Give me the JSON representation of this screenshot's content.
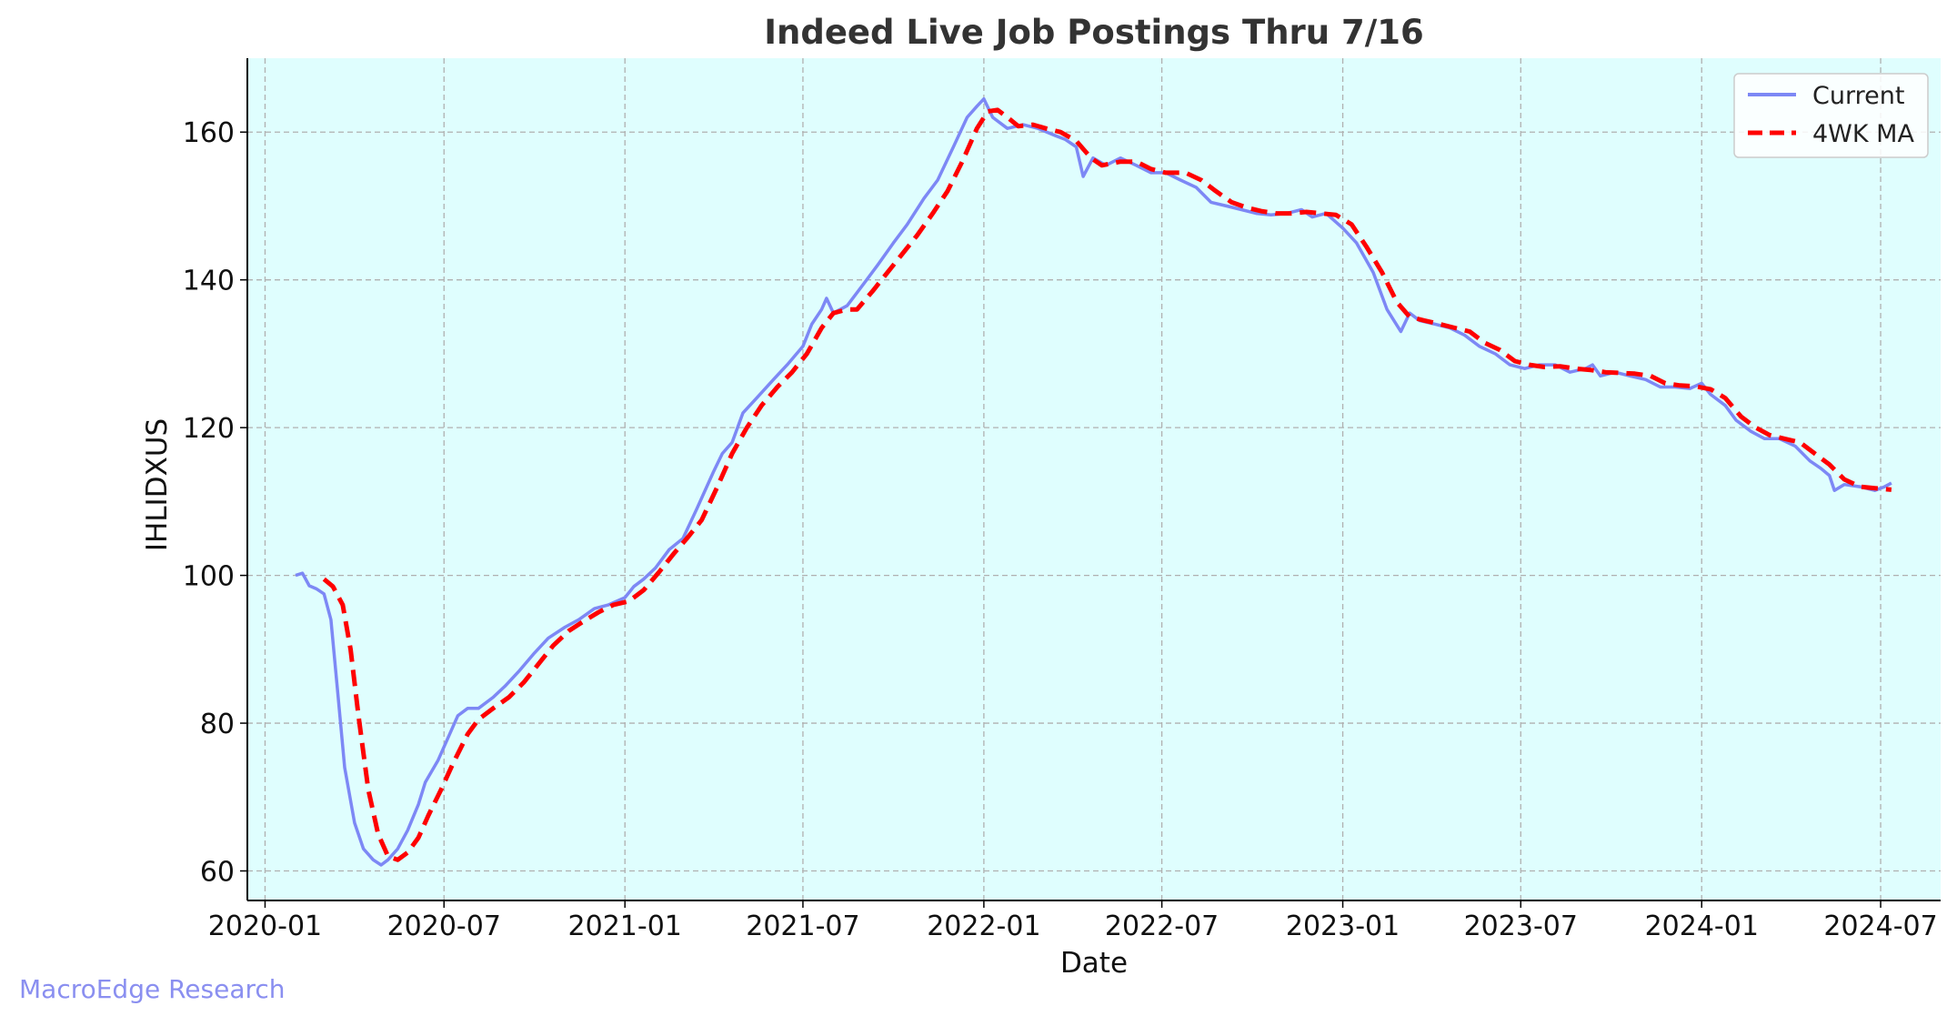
{
  "watermark": "MacroEdge Research",
  "colors": {
    "plot_background": "#dffefe",
    "current_line": "#7d88f5",
    "ma_line": "#ff0000",
    "grid": "#b0b0b0",
    "watermark": "#8a8ff0"
  },
  "chart_data": {
    "type": "line",
    "title": "Indeed Live Job Postings Thru 7/16",
    "xlabel": "Date",
    "ylabel": "IHLIDXUS",
    "xlim": [
      "2019-12-14",
      "2024-08-31"
    ],
    "ylim": [
      56,
      170
    ],
    "yticks": [
      60,
      80,
      100,
      120,
      140,
      160
    ],
    "xticks": [
      "2020-01",
      "2020-07",
      "2021-01",
      "2021-07",
      "2022-01",
      "2022-07",
      "2023-01",
      "2023-07",
      "2024-01",
      "2024-07"
    ],
    "grid": true,
    "legend_position": "top-right",
    "series": [
      {
        "name": "Current",
        "color": "#7d88f5",
        "style": "solid",
        "points": [
          [
            "2020-02-01",
            100.0
          ],
          [
            "2020-02-08",
            100.3
          ],
          [
            "2020-02-15",
            98.6
          ],
          [
            "2020-02-22",
            98.2
          ],
          [
            "2020-03-01",
            97.5
          ],
          [
            "2020-03-08",
            94.0
          ],
          [
            "2020-03-15",
            84.0
          ],
          [
            "2020-03-22",
            74.0
          ],
          [
            "2020-04-01",
            66.5
          ],
          [
            "2020-04-10",
            63.0
          ],
          [
            "2020-04-20",
            61.5
          ],
          [
            "2020-04-28",
            60.8
          ],
          [
            "2020-05-05",
            61.5
          ],
          [
            "2020-05-15",
            63.0
          ],
          [
            "2020-05-25",
            65.5
          ],
          [
            "2020-06-05",
            69.0
          ],
          [
            "2020-06-12",
            72.0
          ],
          [
            "2020-06-25",
            75.0
          ],
          [
            "2020-07-05",
            78.0
          ],
          [
            "2020-07-15",
            81.0
          ],
          [
            "2020-07-25",
            82.0
          ],
          [
            "2020-08-05",
            82.0
          ],
          [
            "2020-08-20",
            83.5
          ],
          [
            "2020-09-01",
            85.0
          ],
          [
            "2020-09-15",
            87.0
          ],
          [
            "2020-10-01",
            89.5
          ],
          [
            "2020-10-15",
            91.5
          ],
          [
            "2020-11-01",
            93.0
          ],
          [
            "2020-11-15",
            94.0
          ],
          [
            "2020-12-01",
            95.5
          ],
          [
            "2020-12-15",
            96.0
          ],
          [
            "2021-01-01",
            97.0
          ],
          [
            "2021-01-10",
            98.5
          ],
          [
            "2021-01-20",
            99.5
          ],
          [
            "2021-02-01",
            101.0
          ],
          [
            "2021-02-15",
            103.5
          ],
          [
            "2021-03-01",
            105.0
          ],
          [
            "2021-03-15",
            109.0
          ],
          [
            "2021-04-01",
            114.0
          ],
          [
            "2021-04-10",
            116.5
          ],
          [
            "2021-04-20",
            118.0
          ],
          [
            "2021-05-01",
            122.0
          ],
          [
            "2021-05-15",
            124.0
          ],
          [
            "2021-06-01",
            126.5
          ],
          [
            "2021-06-15",
            128.5
          ],
          [
            "2021-07-01",
            131.0
          ],
          [
            "2021-07-10",
            134.0
          ],
          [
            "2021-07-20",
            136.0
          ],
          [
            "2021-07-25",
            137.5
          ],
          [
            "2021-08-01",
            135.5
          ],
          [
            "2021-08-15",
            136.5
          ],
          [
            "2021-09-01",
            139.5
          ],
          [
            "2021-09-15",
            142.0
          ],
          [
            "2021-10-01",
            145.0
          ],
          [
            "2021-10-15",
            147.5
          ],
          [
            "2021-11-01",
            151.0
          ],
          [
            "2021-11-15",
            153.5
          ],
          [
            "2021-12-01",
            158.0
          ],
          [
            "2021-12-15",
            162.0
          ],
          [
            "2021-12-25",
            163.5
          ],
          [
            "2022-01-01",
            164.5
          ],
          [
            "2022-01-10",
            162.0
          ],
          [
            "2022-01-25",
            160.5
          ],
          [
            "2022-02-10",
            161.0
          ],
          [
            "2022-02-25",
            160.5
          ],
          [
            "2022-03-15",
            159.5
          ],
          [
            "2022-03-25",
            159.0
          ],
          [
            "2022-04-05",
            158.0
          ],
          [
            "2022-04-12",
            154.0
          ],
          [
            "2022-04-22",
            156.5
          ],
          [
            "2022-05-05",
            155.5
          ],
          [
            "2022-05-20",
            156.5
          ],
          [
            "2022-06-05",
            155.5
          ],
          [
            "2022-06-20",
            154.5
          ],
          [
            "2022-07-05",
            154.5
          ],
          [
            "2022-07-20",
            153.5
          ],
          [
            "2022-08-05",
            152.5
          ],
          [
            "2022-08-20",
            150.5
          ],
          [
            "2022-09-05",
            150.0
          ],
          [
            "2022-09-20",
            149.5
          ],
          [
            "2022-10-05",
            149.0
          ],
          [
            "2022-10-20",
            148.8
          ],
          [
            "2022-11-05",
            149.0
          ],
          [
            "2022-11-20",
            149.5
          ],
          [
            "2022-12-01",
            148.5
          ],
          [
            "2022-12-15",
            149.0
          ],
          [
            "2023-01-01",
            147.0
          ],
          [
            "2023-01-15",
            145.0
          ],
          [
            "2023-02-01",
            141.0
          ],
          [
            "2023-02-15",
            136.0
          ],
          [
            "2023-03-01",
            133.0
          ],
          [
            "2023-03-10",
            135.5
          ],
          [
            "2023-03-20",
            134.5
          ],
          [
            "2023-04-05",
            134.0
          ],
          [
            "2023-04-20",
            133.5
          ],
          [
            "2023-05-05",
            132.5
          ],
          [
            "2023-05-20",
            131.0
          ],
          [
            "2023-06-05",
            130.0
          ],
          [
            "2023-06-20",
            128.5
          ],
          [
            "2023-07-05",
            128.0
          ],
          [
            "2023-07-20",
            128.5
          ],
          [
            "2023-08-05",
            128.5
          ],
          [
            "2023-08-20",
            127.5
          ],
          [
            "2023-09-05",
            128.0
          ],
          [
            "2023-09-12",
            128.5
          ],
          [
            "2023-09-20",
            127.0
          ],
          [
            "2023-10-05",
            127.5
          ],
          [
            "2023-10-20",
            127.0
          ],
          [
            "2023-11-05",
            126.5
          ],
          [
            "2023-11-20",
            125.5
          ],
          [
            "2023-12-05",
            125.5
          ],
          [
            "2023-12-20",
            125.3
          ],
          [
            "2024-01-01",
            126.0
          ],
          [
            "2024-01-10",
            124.5
          ],
          [
            "2024-01-25",
            123.0
          ],
          [
            "2024-02-05",
            121.0
          ],
          [
            "2024-02-20",
            119.5
          ],
          [
            "2024-03-05",
            118.5
          ],
          [
            "2024-03-20",
            118.5
          ],
          [
            "2024-04-05",
            117.5
          ],
          [
            "2024-04-20",
            115.5
          ],
          [
            "2024-05-01",
            114.5
          ],
          [
            "2024-05-10",
            113.5
          ],
          [
            "2024-05-15",
            111.5
          ],
          [
            "2024-05-25",
            112.3
          ],
          [
            "2024-06-10",
            112.0
          ],
          [
            "2024-06-25",
            111.5
          ],
          [
            "2024-07-05",
            112.0
          ],
          [
            "2024-07-12",
            112.5
          ]
        ]
      },
      {
        "name": "4WK MA",
        "color": "#ff0000",
        "style": "dashed",
        "points": [
          [
            "2020-03-01",
            99.5
          ],
          [
            "2020-03-10",
            98.5
          ],
          [
            "2020-03-20",
            96.0
          ],
          [
            "2020-03-28",
            90.0
          ],
          [
            "2020-04-05",
            81.0
          ],
          [
            "2020-04-15",
            71.0
          ],
          [
            "2020-04-25",
            65.0
          ],
          [
            "2020-05-05",
            62.0
          ],
          [
            "2020-05-15",
            61.5
          ],
          [
            "2020-05-25",
            62.5
          ],
          [
            "2020-06-05",
            64.5
          ],
          [
            "2020-06-15",
            67.5
          ],
          [
            "2020-06-28",
            71.0
          ],
          [
            "2020-07-10",
            74.5
          ],
          [
            "2020-07-25",
            78.5
          ],
          [
            "2020-08-05",
            80.5
          ],
          [
            "2020-08-20",
            82.0
          ],
          [
            "2020-09-05",
            83.5
          ],
          [
            "2020-09-20",
            85.5
          ],
          [
            "2020-10-05",
            88.0
          ],
          [
            "2020-10-20",
            90.5
          ],
          [
            "2020-11-05",
            92.5
          ],
          [
            "2020-11-20",
            93.8
          ],
          [
            "2020-12-05",
            95.0
          ],
          [
            "2020-12-20",
            96.0
          ],
          [
            "2021-01-05",
            96.5
          ],
          [
            "2021-01-20",
            98.0
          ],
          [
            "2021-02-05",
            100.5
          ],
          [
            "2021-02-20",
            103.0
          ],
          [
            "2021-03-05",
            105.0
          ],
          [
            "2021-03-20",
            107.5
          ],
          [
            "2021-04-05",
            112.0
          ],
          [
            "2021-04-20",
            116.5
          ],
          [
            "2021-05-05",
            120.0
          ],
          [
            "2021-05-20",
            123.0
          ],
          [
            "2021-06-05",
            125.5
          ],
          [
            "2021-06-20",
            127.5
          ],
          [
            "2021-07-05",
            130.0
          ],
          [
            "2021-07-20",
            133.5
          ],
          [
            "2021-08-01",
            135.5
          ],
          [
            "2021-08-15",
            136.0
          ],
          [
            "2021-08-25",
            136.0
          ],
          [
            "2021-09-10",
            138.5
          ],
          [
            "2021-09-25",
            141.0
          ],
          [
            "2021-10-10",
            143.5
          ],
          [
            "2021-10-25",
            146.0
          ],
          [
            "2021-11-10",
            149.0
          ],
          [
            "2021-11-25",
            152.0
          ],
          [
            "2021-12-10",
            156.0
          ],
          [
            "2021-12-25",
            160.5
          ],
          [
            "2022-01-05",
            162.8
          ],
          [
            "2022-01-15",
            163.0
          ],
          [
            "2022-01-25",
            162.0
          ],
          [
            "2022-02-05",
            160.8
          ],
          [
            "2022-02-20",
            161.0
          ],
          [
            "2022-03-05",
            160.5
          ],
          [
            "2022-03-20",
            160.0
          ],
          [
            "2022-04-05",
            158.8
          ],
          [
            "2022-04-20",
            156.5
          ],
          [
            "2022-05-01",
            155.5
          ],
          [
            "2022-05-20",
            156.0
          ],
          [
            "2022-06-05",
            156.0
          ],
          [
            "2022-06-20",
            155.0
          ],
          [
            "2022-07-05",
            154.5
          ],
          [
            "2022-07-25",
            154.5
          ],
          [
            "2022-08-10",
            153.5
          ],
          [
            "2022-08-25",
            152.0
          ],
          [
            "2022-09-10",
            150.5
          ],
          [
            "2022-09-25",
            149.8
          ],
          [
            "2022-10-10",
            149.3
          ],
          [
            "2022-10-25",
            149.0
          ],
          [
            "2022-11-10",
            149.0
          ],
          [
            "2022-11-25",
            149.2
          ],
          [
            "2022-12-10",
            149.0
          ],
          [
            "2022-12-25",
            148.8
          ],
          [
            "2023-01-10",
            147.5
          ],
          [
            "2023-01-25",
            144.5
          ],
          [
            "2023-02-10",
            141.0
          ],
          [
            "2023-02-25",
            137.0
          ],
          [
            "2023-03-10",
            135.0
          ],
          [
            "2023-03-25",
            134.5
          ],
          [
            "2023-04-10",
            134.0
          ],
          [
            "2023-04-25",
            133.5
          ],
          [
            "2023-05-10",
            133.0
          ],
          [
            "2023-05-25",
            131.5
          ],
          [
            "2023-06-10",
            130.5
          ],
          [
            "2023-06-25",
            129.0
          ],
          [
            "2023-07-10",
            128.5
          ],
          [
            "2023-07-25",
            128.2
          ],
          [
            "2023-08-10",
            128.3
          ],
          [
            "2023-08-25",
            128.0
          ],
          [
            "2023-09-10",
            127.8
          ],
          [
            "2023-09-25",
            127.5
          ],
          [
            "2023-10-10",
            127.4
          ],
          [
            "2023-10-25",
            127.3
          ],
          [
            "2023-11-10",
            127.0
          ],
          [
            "2023-11-25",
            126.0
          ],
          [
            "2023-12-10",
            125.7
          ],
          [
            "2023-12-25",
            125.6
          ],
          [
            "2024-01-10",
            125.2
          ],
          [
            "2024-01-25",
            124.0
          ],
          [
            "2024-02-10",
            121.5
          ],
          [
            "2024-02-25",
            120.0
          ],
          [
            "2024-03-10",
            119.0
          ],
          [
            "2024-03-25",
            118.5
          ],
          [
            "2024-04-10",
            118.0
          ],
          [
            "2024-04-25",
            116.5
          ],
          [
            "2024-05-10",
            115.0
          ],
          [
            "2024-05-25",
            113.0
          ],
          [
            "2024-06-10",
            112.0
          ],
          [
            "2024-06-25",
            111.8
          ],
          [
            "2024-07-12",
            111.6
          ]
        ]
      }
    ]
  }
}
